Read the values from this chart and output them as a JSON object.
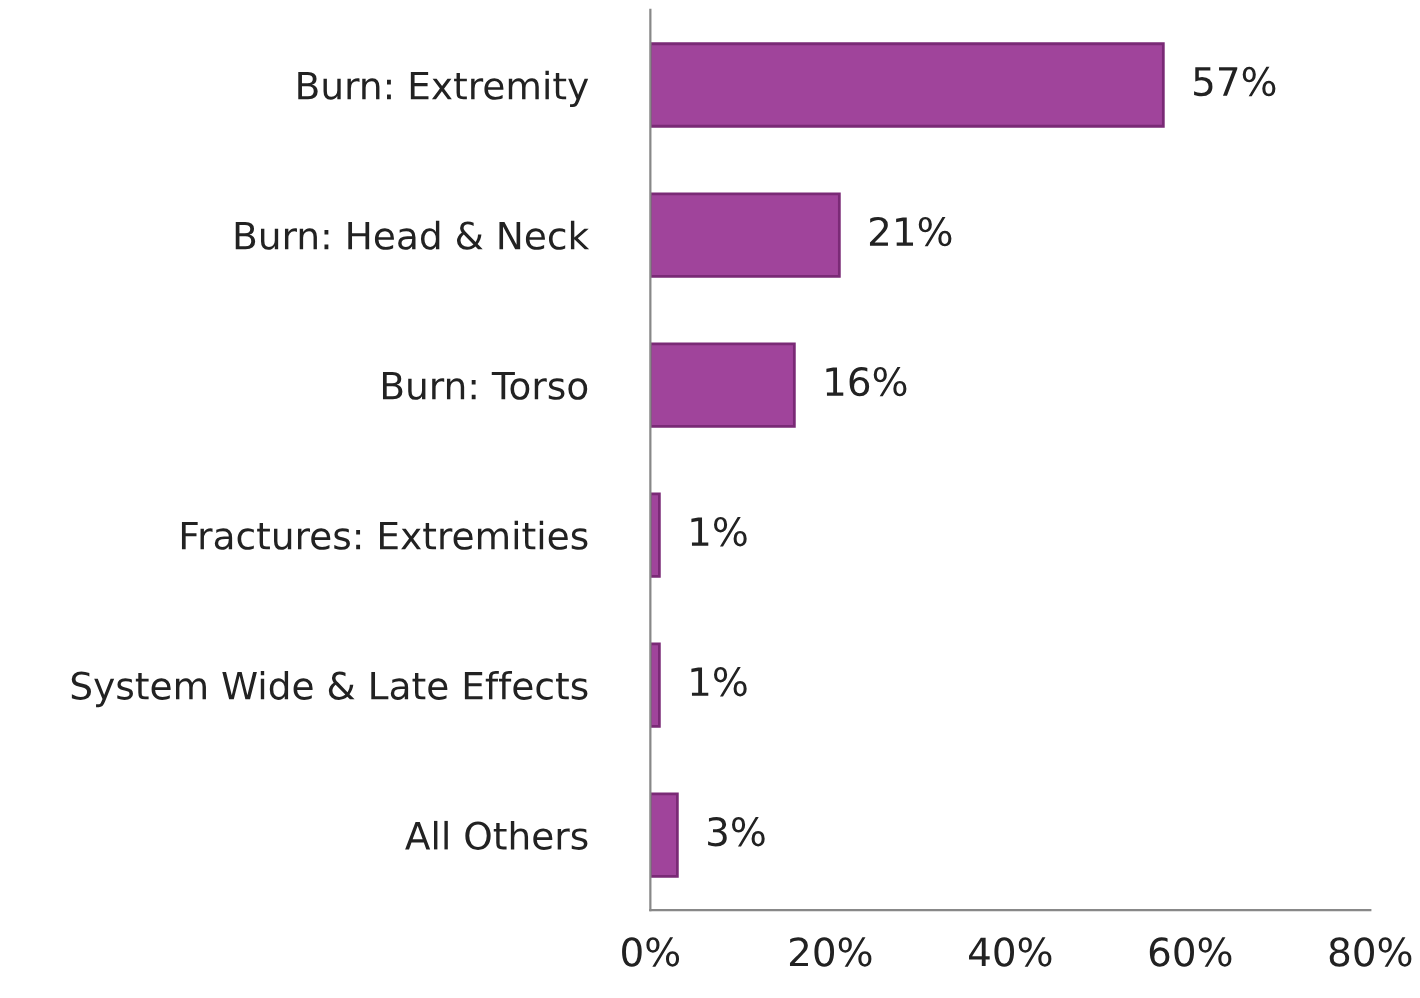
{
  "chart_data": {
    "type": "bar",
    "orientation": "horizontal",
    "categories": [
      "Burn: Extremity",
      "Burn: Head & Neck",
      "Burn: Torso",
      "Fractures: Extremities",
      "System Wide & Late Effects",
      "All Others"
    ],
    "values": [
      57,
      21,
      16,
      1,
      1,
      3
    ],
    "value_labels": [
      "57%",
      "21%",
      "16%",
      "1%",
      "1%",
      "3%"
    ],
    "color": "#a0449b",
    "xlim": [
      0,
      80
    ],
    "xticks": [
      {
        "value": 0,
        "label": "0%"
      },
      {
        "value": 20,
        "label": "20%"
      },
      {
        "value": 40,
        "label": "40%"
      },
      {
        "value": 60,
        "label": "60%"
      },
      {
        "value": 80,
        "label": "80%"
      }
    ],
    "grid": false,
    "legend": false
  }
}
